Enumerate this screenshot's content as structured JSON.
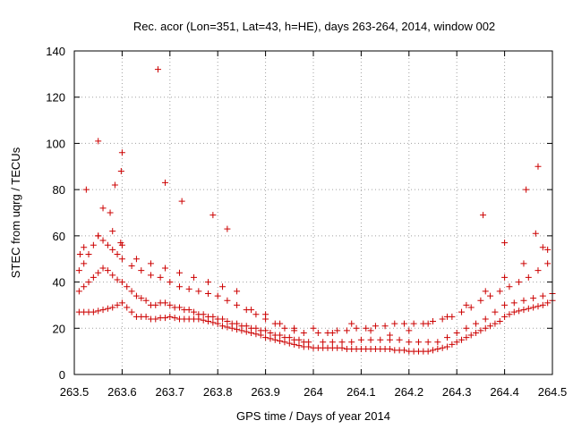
{
  "chart_data": {
    "type": "scatter",
    "title": "Rec. acor (Lon=351, Lat=43, h=HE), days 263-264, 2014, window 002",
    "xlabel": "GPS time / Days of year 2014",
    "ylabel": "STEC from uqrg / TECUs",
    "xlim": [
      263.5,
      264.5
    ],
    "ylim": [
      0,
      140
    ],
    "xticks": [
      "263.5",
      "263.6",
      "263.7",
      "263.8",
      "263.9",
      "264",
      "264.1",
      "264.2",
      "264.3",
      "264.4",
      "264.5"
    ],
    "yticks": [
      "0",
      "20",
      "40",
      "60",
      "80",
      "100",
      "120",
      "140"
    ],
    "grid": true,
    "marker": "+",
    "color": "#cc0000",
    "series": [
      {
        "x": [
          263.51,
          263.52,
          263.53,
          263.54,
          263.55,
          263.56,
          263.57,
          263.58,
          263.59,
          263.6,
          263.61,
          263.62,
          263.63,
          263.64,
          263.65,
          263.66,
          263.67,
          263.68,
          263.69,
          263.7,
          263.71,
          263.72,
          263.73,
          263.74,
          263.75,
          263.76,
          263.77,
          263.78,
          263.79,
          263.8,
          263.81,
          263.82,
          263.83,
          263.84,
          263.85,
          263.86,
          263.87,
          263.88,
          263.89,
          263.9,
          263.91,
          263.92,
          263.93,
          263.94,
          263.95,
          263.96,
          263.97,
          263.98,
          263.99,
          264.0,
          264.01,
          264.02,
          264.03,
          264.04,
          264.05,
          264.06,
          264.07,
          264.08,
          264.09,
          264.1,
          264.11,
          264.12,
          264.13,
          264.14,
          264.15,
          264.16,
          264.17,
          264.18,
          264.19,
          264.2,
          264.21,
          264.22,
          264.23,
          264.24,
          264.25,
          264.26,
          264.27,
          264.28,
          264.29,
          264.3,
          264.31,
          264.32,
          264.33,
          264.34,
          264.35,
          264.36,
          264.37,
          264.38,
          264.39,
          264.4,
          264.41,
          264.42,
          264.43,
          264.44,
          264.45,
          264.46,
          264.47,
          264.48,
          264.49,
          264.5,
          263.51,
          263.52,
          263.53,
          263.54,
          263.55,
          263.56,
          263.57,
          263.58,
          263.59,
          263.6,
          263.61,
          263.62,
          263.63,
          263.64,
          263.65,
          263.66,
          263.67,
          263.68,
          263.69,
          263.7,
          263.71,
          263.72,
          263.73,
          263.74,
          263.75,
          263.76,
          263.77,
          263.78,
          263.79,
          263.8,
          263.81,
          263.82,
          263.83,
          263.84,
          263.85,
          263.86,
          263.87,
          263.88,
          263.89,
          263.9,
          263.91,
          263.92,
          263.93,
          263.94,
          263.95,
          263.96,
          263.97,
          263.98,
          263.99,
          264.02,
          264.04,
          264.06,
          264.08,
          264.1,
          264.12,
          264.14,
          264.16,
          264.18,
          264.2,
          264.22,
          264.24,
          264.26,
          264.28,
          264.3,
          264.32,
          264.34,
          264.36,
          264.38,
          264.4,
          264.42,
          264.44,
          264.46,
          264.48,
          264.5,
          263.51,
          263.52,
          263.53,
          263.54,
          263.55,
          263.56,
          263.57,
          263.58,
          263.59,
          263.6,
          263.62,
          263.64,
          263.66,
          263.68,
          263.7,
          263.72,
          263.74,
          263.76,
          263.78,
          263.8,
          263.82,
          263.84,
          263.86,
          263.88,
          263.9,
          263.92,
          263.94,
          263.96,
          263.98,
          264.01,
          264.03,
          264.05,
          264.07,
          264.09,
          264.11,
          264.13,
          264.15,
          264.17,
          264.19,
          264.21,
          264.23,
          264.25,
          264.27,
          264.29,
          264.31,
          264.33,
          264.35,
          264.37,
          264.39,
          264.41,
          264.43,
          264.45,
          264.47,
          264.49,
          263.52,
          263.55,
          263.58,
          263.6,
          263.63,
          263.66,
          263.69,
          263.72,
          263.75,
          263.78,
          263.81,
          263.84,
          263.87,
          263.9,
          263.93,
          263.96,
          264.0,
          264.04,
          264.08,
          264.12,
          264.16,
          264.2,
          264.24,
          264.28,
          264.32,
          264.36,
          264.4,
          264.44,
          264.48,
          263.512,
          263.525,
          263.55,
          263.56,
          263.575,
          263.585,
          263.597,
          263.598,
          263.6,
          263.675,
          263.69,
          263.725,
          263.79,
          263.82,
          264.355,
          264.4,
          264.445,
          264.465,
          264.47,
          264.49
        ],
        "y": [
          27,
          27,
          27,
          27,
          27.5,
          28,
          28.5,
          29,
          30,
          31,
          29,
          27,
          25,
          25,
          25,
          24,
          24,
          24.5,
          24.5,
          25,
          24.5,
          24,
          24,
          24,
          24,
          24,
          23.5,
          23,
          22.5,
          22,
          21,
          20.5,
          20,
          19.5,
          19,
          18.5,
          18,
          17.5,
          17,
          16,
          15.5,
          15,
          14.5,
          14,
          13.5,
          13,
          12.5,
          12,
          12,
          11.5,
          11.5,
          11.5,
          11.5,
          11.5,
          11.5,
          11.5,
          11,
          11,
          11,
          11,
          11,
          11,
          11,
          11,
          11,
          11,
          10.5,
          10.5,
          10.5,
          10,
          10,
          10,
          10,
          10,
          10.5,
          11,
          11.5,
          12,
          13,
          14,
          15,
          16,
          17,
          18,
          19,
          20,
          21,
          22,
          23,
          25,
          26,
          27,
          27.5,
          28,
          28.5,
          29,
          29.5,
          30,
          31,
          32,
          36,
          38,
          40,
          42,
          44,
          46,
          45,
          43,
          41,
          40,
          38,
          36,
          34,
          33,
          32,
          30,
          30,
          31,
          31,
          30,
          29,
          29,
          28,
          28,
          27,
          26,
          26,
          25,
          25,
          24,
          24,
          23,
          22,
          22,
          21,
          21,
          20,
          20,
          19,
          19,
          18,
          17,
          17,
          16,
          16,
          15,
          15,
          14,
          14,
          14,
          14,
          14,
          14,
          15,
          15,
          15,
          15,
          15,
          14,
          14,
          14,
          14,
          16,
          18,
          20,
          22,
          24,
          27,
          30,
          31,
          32,
          33,
          34,
          35,
          45,
          48,
          52,
          56,
          60,
          58,
          56,
          54,
          52,
          50,
          47,
          45,
          43,
          42,
          40,
          38,
          37,
          36,
          35,
          34,
          32,
          30,
          28,
          26,
          24,
          22,
          20,
          19,
          18,
          18,
          18,
          19,
          19,
          20,
          20,
          21,
          21,
          22,
          22,
          22,
          22,
          23,
          24,
          25,
          27,
          29,
          32,
          34,
          36,
          38,
          40,
          42,
          45,
          48,
          55,
          60,
          62,
          56,
          50,
          48,
          46,
          44,
          42,
          40,
          38,
          36,
          28,
          26,
          22,
          20,
          20,
          18,
          22,
          19,
          17,
          19,
          22,
          25,
          30,
          36,
          42,
          48,
          55,
          52,
          80,
          101,
          72,
          70,
          82,
          57,
          88,
          96,
          132,
          83,
          75,
          69,
          63,
          69,
          57,
          80,
          61,
          90,
          54
        ]
      }
    ]
  }
}
